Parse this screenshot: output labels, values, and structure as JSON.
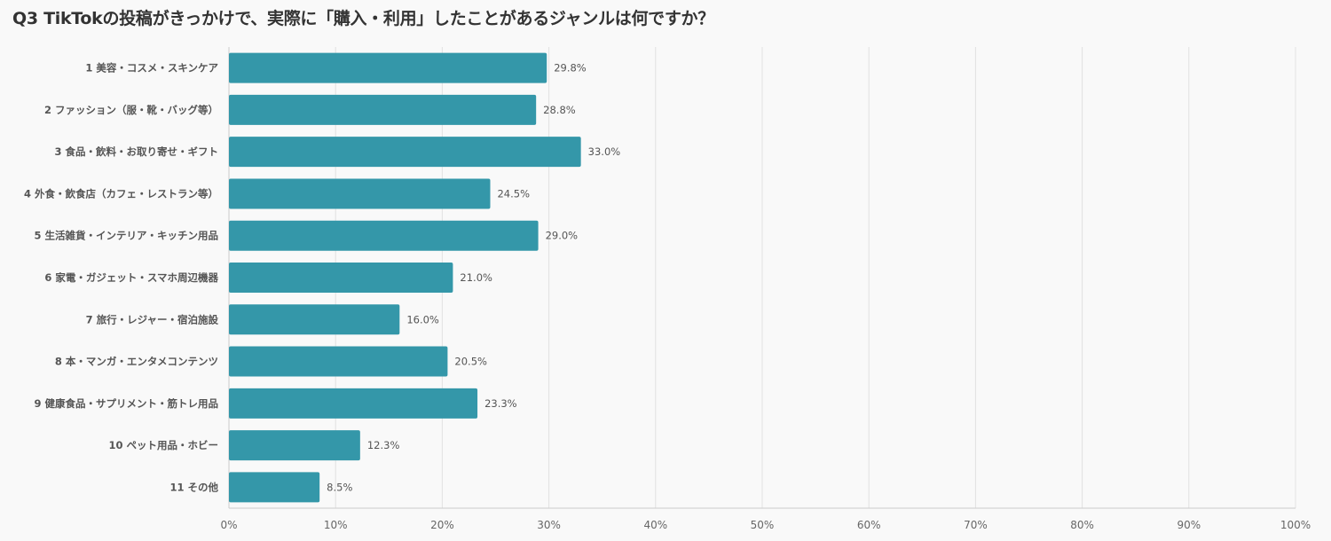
{
  "chart_data": {
    "type": "bar",
    "orientation": "horizontal",
    "title": "Q3 TikTokの投稿がきっかけで、実際に「購入・利用」したことがあるジャンルは何ですか？",
    "categories": [
      "1 美容・コスメ・スキンケア",
      "2 ファッション（服・靴・バッグ等）",
      "3 食品・飲料・お取り寄せ・ギフト",
      "4 外食・飲食店（カフェ・レストラン等）",
      "5 生活雑貨・インテリア・キッチン用品",
      "6 家電・ガジェット・スマホ周辺機器",
      "7 旅行・レジャー・宿泊施設",
      "8 本・マンガ・エンタメコンテンツ",
      "9 健康食品・サプリメント・筋トレ用品",
      "10 ペット用品・ホビー",
      "11 その他"
    ],
    "values": [
      29.8,
      28.8,
      33.0,
      24.5,
      29.0,
      21.0,
      16.0,
      20.5,
      23.3,
      12.3,
      8.5
    ],
    "data_labels": [
      "29.8%",
      "28.8%",
      "33.0%",
      "24.5%",
      "29.0%",
      "21.0%",
      "16.0%",
      "20.5%",
      "23.3%",
      "12.3%",
      "8.5%"
    ],
    "xlim": [
      0,
      100
    ],
    "xticks": [
      "0%",
      "10%",
      "20%",
      "30%",
      "40%",
      "50%",
      "60%",
      "70%",
      "80%",
      "90%",
      "100%"
    ],
    "xlabel": "",
    "ylabel": "",
    "grid": true,
    "bar_color": "#3497a9"
  }
}
